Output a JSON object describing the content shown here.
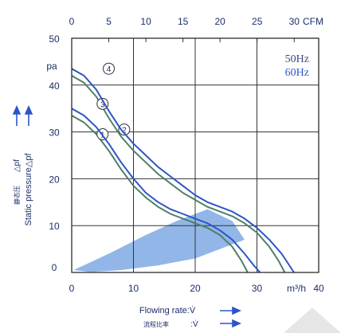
{
  "chart_data": {
    "type": "line",
    "x_bottom": {
      "ticks": [
        "0",
        "10",
        "20",
        "30",
        "40"
      ],
      "unit": "m³/h",
      "range": [
        0,
        40
      ],
      "label": "Flowing rate:V̇",
      "label_cn": "流程比率",
      "label_cn_symbol": ":V̇"
    },
    "x_top": {
      "ticks": [
        "0",
        "5",
        "10",
        "15",
        "20",
        "25",
        "30"
      ],
      "unit": "CFM",
      "range": [
        0,
        33.3
      ]
    },
    "y": {
      "ticks": [
        "0",
        "10",
        "20",
        "30",
        "40",
        "50"
      ],
      "unit": "pa",
      "range": [
        0,
        50
      ],
      "label": "Static pressure△pf",
      "label_cn": "静态压",
      "label_cn_symbol": "△pf"
    },
    "legend": {
      "items": [
        {
          "label": "50Hz",
          "color": "#3a4a7a"
        },
        {
          "label": "60Hz",
          "color": "#2d55c8"
        }
      ]
    },
    "grid": true,
    "shaded_region": {
      "color": "#6d9ee0",
      "points": [
        [
          0.3,
          0.5
        ],
        [
          6,
          4
        ],
        [
          12,
          8
        ],
        [
          17,
          11
        ],
        [
          22,
          13.5
        ],
        [
          26,
          11
        ],
        [
          28,
          7
        ],
        [
          24,
          5
        ],
        [
          20,
          3
        ],
        [
          14,
          1.5
        ],
        [
          8,
          0.5
        ],
        [
          3,
          0.1
        ]
      ]
    },
    "series": [
      {
        "label": "1",
        "color": "#4f7f6a",
        "points": [
          [
            0,
            33.5
          ],
          [
            2,
            32
          ],
          [
            4,
            29.5
          ],
          [
            6,
            26
          ],
          [
            8,
            22
          ],
          [
            10,
            18.5
          ],
          [
            12,
            16
          ],
          [
            14,
            14
          ],
          [
            16,
            12.5
          ],
          [
            18,
            11.5
          ],
          [
            20,
            10.5
          ],
          [
            22,
            9.5
          ],
          [
            24,
            8
          ],
          [
            26,
            5.5
          ],
          [
            27.5,
            2.5
          ],
          [
            28.5,
            0
          ]
        ]
      },
      {
        "label": "2",
        "color": "#2d55c8",
        "points": [
          [
            0,
            35
          ],
          [
            2,
            33.5
          ],
          [
            4,
            31
          ],
          [
            6,
            27.5
          ],
          [
            8,
            23.5
          ],
          [
            10,
            20
          ],
          [
            12,
            17
          ],
          [
            14,
            15
          ],
          [
            16,
            13.5
          ],
          [
            18,
            12.5
          ],
          [
            20,
            11.5
          ],
          [
            22,
            10.5
          ],
          [
            24,
            9
          ],
          [
            26,
            7
          ],
          [
            28,
            4
          ],
          [
            29.5,
            1.5
          ],
          [
            30.5,
            0
          ]
        ]
      },
      {
        "label": "3",
        "color": "#4f7f6a",
        "points": [
          [
            0,
            42
          ],
          [
            2,
            40.5
          ],
          [
            4,
            37.5
          ],
          [
            6,
            33
          ],
          [
            8,
            29
          ],
          [
            10,
            26
          ],
          [
            12,
            23.5
          ],
          [
            14,
            21
          ],
          [
            16,
            19
          ],
          [
            18,
            17
          ],
          [
            20,
            15.5
          ],
          [
            22,
            14
          ],
          [
            24,
            13
          ],
          [
            26,
            12
          ],
          [
            28,
            10.5
          ],
          [
            30,
            8.5
          ],
          [
            32,
            5.5
          ],
          [
            33.5,
            2.5
          ],
          [
            34.5,
            0
          ]
        ]
      },
      {
        "label": "4",
        "color": "#2d55c8",
        "points": [
          [
            0,
            43.5
          ],
          [
            2,
            42
          ],
          [
            4,
            39
          ],
          [
            6,
            34.5
          ],
          [
            8,
            30.5
          ],
          [
            10,
            27.5
          ],
          [
            12,
            25
          ],
          [
            14,
            22.5
          ],
          [
            16,
            20.5
          ],
          [
            18,
            18.5
          ],
          [
            20,
            16.5
          ],
          [
            22,
            15
          ],
          [
            24,
            14
          ],
          [
            26,
            13
          ],
          [
            28,
            11.5
          ],
          [
            30,
            9.5
          ],
          [
            32,
            7
          ],
          [
            34,
            4
          ],
          [
            36,
            0
          ]
        ]
      }
    ]
  }
}
